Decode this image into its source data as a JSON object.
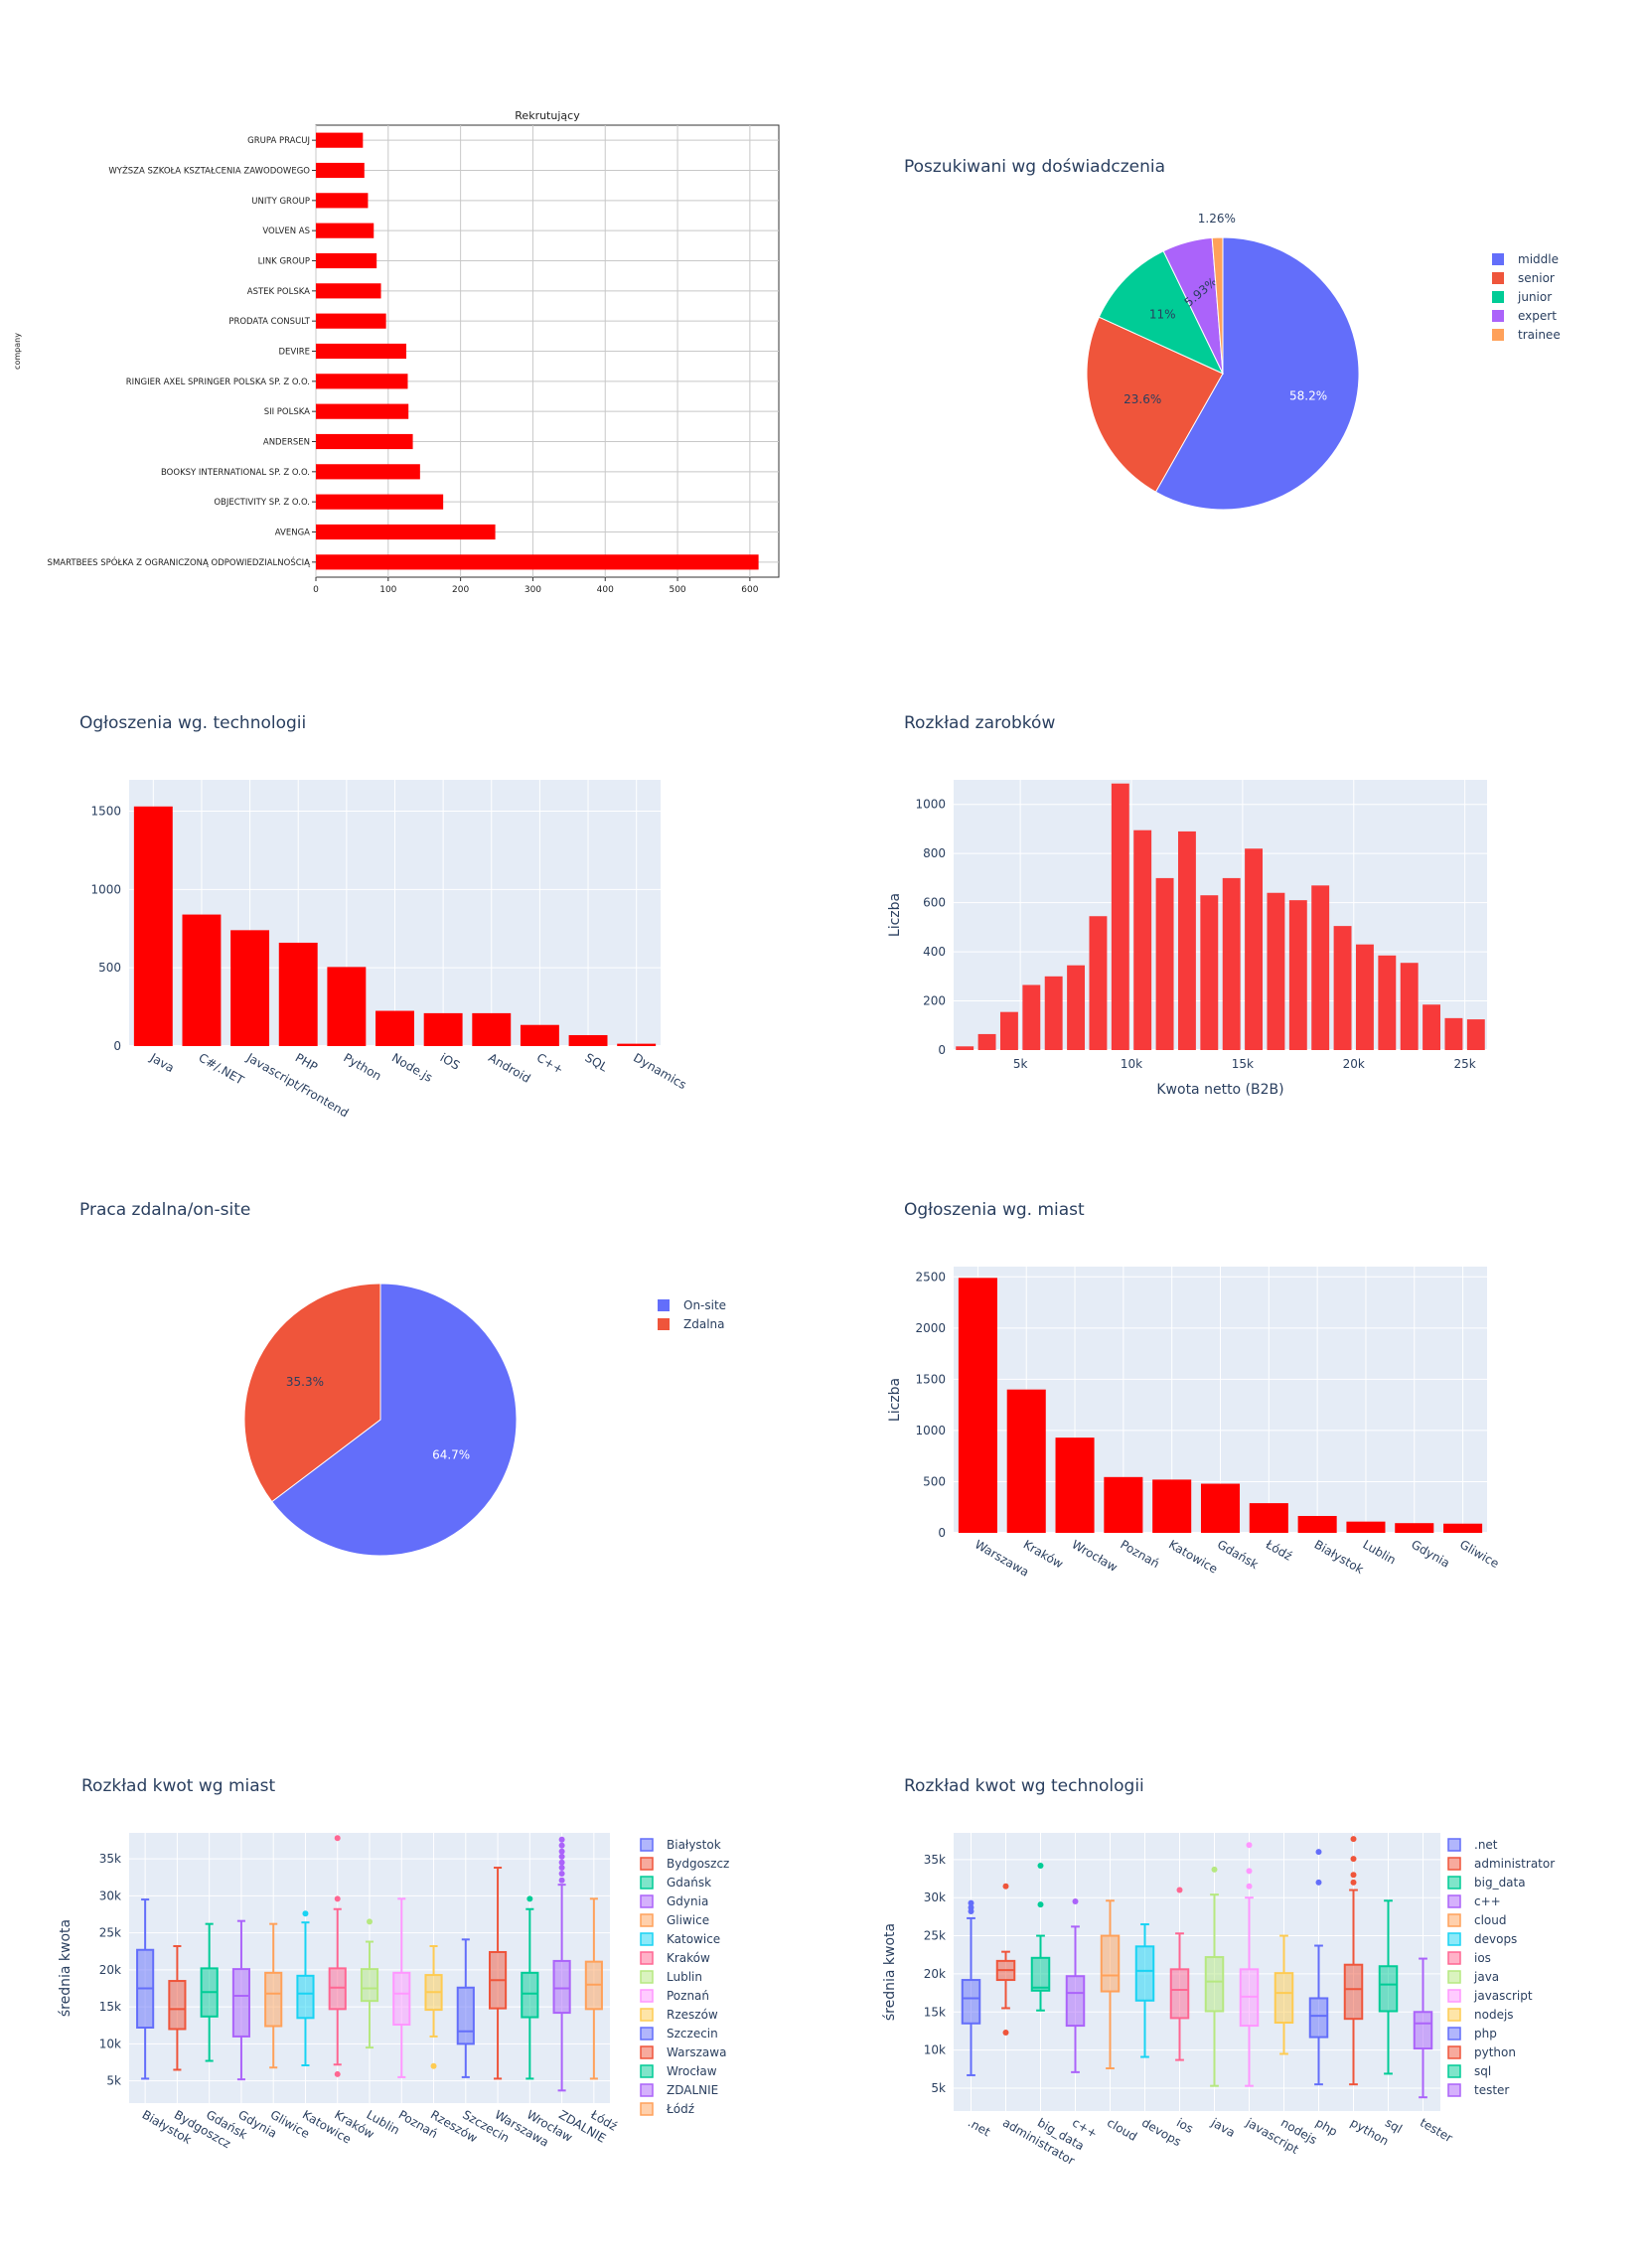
{
  "colors": {
    "plot_bg": "#e5ecf6",
    "red": "#ff0000",
    "salary": "#f73a3a",
    "palette": [
      "#636efa",
      "#ef553b",
      "#00cc96",
      "#ab63fa",
      "#ffa15a",
      "#19d3f3",
      "#ff6692",
      "#b6e880",
      "#ff97ff",
      "#fecb52"
    ]
  },
  "chart_data": [
    {
      "id": "recruiters",
      "type": "bar",
      "orientation": "horizontal",
      "title": "Rekrutujący",
      "ylabel": "company",
      "xlim": [
        0,
        640
      ],
      "xticks": [
        0,
        100,
        200,
        300,
        400,
        500,
        600
      ],
      "categories": [
        "GRUPA PRACUJ",
        "WYŻSZA SZKOŁA KSZTAŁCENIA ZAWODOWEGO",
        "UNITY GROUP",
        "VOLVEN AS",
        "LINK GROUP",
        "ASTEK POLSKA",
        "PRODATA CONSULT",
        "DEVIRE",
        "RINGIER AXEL SPRINGER POLSKA SP. Z O.O.",
        "SII POLSKA",
        "ANDERSEN",
        "BOOKSY INTERNATIONAL SP. Z O.O.",
        "OBJECTIVITY SP. Z O.O.",
        "AVENGA",
        "SMARTBEES SPÓŁKA Z OGRANICZONĄ ODPOWIEDZIALNOŚCIĄ"
      ],
      "values": [
        65,
        67,
        72,
        80,
        84,
        90,
        97,
        125,
        127,
        128,
        134,
        144,
        176,
        248,
        612
      ]
    },
    {
      "id": "experience",
      "type": "pie",
      "title": "Poszukiwani wg doświadczenia",
      "labels": [
        "middle",
        "senior",
        "junior",
        "expert",
        "trainee"
      ],
      "values": [
        58.2,
        23.6,
        11,
        5.93,
        1.26
      ],
      "text": [
        "58.2%",
        "23.6%",
        "11%",
        "5.93%",
        "1.26%"
      ],
      "legend": "right"
    },
    {
      "id": "technologies",
      "type": "bar",
      "title": "Ogłoszenia wg. technologii",
      "categories": [
        "Java",
        "C#/.NET",
        "Javascript/Frontend",
        "PHP",
        "Python",
        "Node.js",
        "iOS",
        "Android",
        "C++",
        "SQL",
        "Dynamics"
      ],
      "values": [
        1530,
        840,
        740,
        660,
        505,
        225,
        210,
        210,
        135,
        70,
        15
      ],
      "ylim": [
        0,
        1700
      ],
      "yticks": [
        0,
        500,
        1000,
        1500
      ]
    },
    {
      "id": "salary",
      "type": "bar",
      "title": "Rozkład zarobków",
      "xlabel": "Kwota netto (B2B)",
      "ylabel": "Liczba",
      "xlim": [
        2000,
        26000
      ],
      "ylim": [
        0,
        1100
      ],
      "xticks": [
        5000,
        10000,
        15000,
        20000,
        25000
      ],
      "xtick_labels": [
        "5k",
        "10k",
        "15k",
        "20k",
        "25k"
      ],
      "yticks": [
        0,
        200,
        400,
        600,
        800,
        1000
      ],
      "bin_width": 1000,
      "bin_starts": [
        2000,
        3000,
        4000,
        5000,
        6000,
        7000,
        8000,
        9000,
        10000,
        11000,
        12000,
        13000,
        14000,
        15000,
        16000,
        17000,
        18000,
        19000,
        20000,
        21000,
        22000,
        23000,
        24000,
        25000
      ],
      "values": [
        15,
        65,
        155,
        265,
        300,
        345,
        545,
        1085,
        895,
        700,
        890,
        630,
        700,
        820,
        640,
        610,
        670,
        505,
        430,
        385,
        355,
        185,
        130,
        125
      ]
    },
    {
      "id": "remote",
      "type": "pie",
      "title": "Praca zdalna/on-site",
      "labels": [
        "On-site",
        "Zdalna"
      ],
      "values": [
        64.7,
        35.3
      ],
      "text": [
        "64.7%",
        "35.3%"
      ],
      "legend": "right"
    },
    {
      "id": "cities",
      "type": "bar",
      "title": "Ogłoszenia wg. miast",
      "ylabel": "Liczba",
      "categories": [
        "Warszawa",
        "Kraków",
        "Wrocław",
        "Poznań",
        "Katowice",
        "Gdańsk",
        "Łódź",
        "Białystok",
        "Lublin",
        "Gdynia",
        "Gliwice"
      ],
      "values": [
        2490,
        1400,
        930,
        545,
        520,
        480,
        290,
        165,
        110,
        95,
        90
      ],
      "ylim": [
        0,
        2600
      ],
      "yticks": [
        0,
        500,
        1000,
        1500,
        2000,
        2500
      ]
    },
    {
      "id": "box_cities",
      "type": "box",
      "title": "Rozkład kwot wg miast",
      "ylabel": "średnia kwota",
      "ylim": [
        2000,
        38500
      ],
      "yticks": [
        5000,
        10000,
        15000,
        20000,
        25000,
        30000,
        35000
      ],
      "ytick_labels": [
        "5k",
        "10k",
        "15k",
        "20k",
        "25k",
        "30k",
        "35k"
      ],
      "legend": "right",
      "series": [
        {
          "name": "Białystok",
          "min": 5300,
          "q1": 12200,
          "median": 17500,
          "q3": 22700,
          "max": 29500,
          "outliers": []
        },
        {
          "name": "Bydgoszcz",
          "min": 6500,
          "q1": 12000,
          "median": 14700,
          "q3": 18500,
          "max": 23200,
          "outliers": []
        },
        {
          "name": "Gdańsk",
          "min": 7700,
          "q1": 13700,
          "median": 17000,
          "q3": 20200,
          "max": 26200,
          "outliers": []
        },
        {
          "name": "Gdynia",
          "min": 5200,
          "q1": 11000,
          "median": 16500,
          "q3": 20100,
          "max": 26600,
          "outliers": []
        },
        {
          "name": "Gliwice",
          "min": 6800,
          "q1": 12400,
          "median": 16800,
          "q3": 19600,
          "max": 26200,
          "outliers": []
        },
        {
          "name": "Katowice",
          "min": 7100,
          "q1": 13500,
          "median": 16800,
          "q3": 19200,
          "max": 26400,
          "outliers": [
            27600
          ]
        },
        {
          "name": "Kraków",
          "min": 7200,
          "q1": 14700,
          "median": 17600,
          "q3": 20200,
          "max": 28200,
          "outliers": [
            29600,
            37800,
            5900
          ]
        },
        {
          "name": "Lublin",
          "min": 9500,
          "q1": 15800,
          "median": 17500,
          "q3": 20100,
          "max": 23800,
          "outliers": [
            26500
          ]
        },
        {
          "name": "Poznań",
          "min": 5500,
          "q1": 12600,
          "median": 16800,
          "q3": 19600,
          "max": 29600,
          "outliers": []
        },
        {
          "name": "Rzeszów",
          "min": 11000,
          "q1": 14600,
          "median": 17000,
          "q3": 19300,
          "max": 23200,
          "outliers": [
            7000
          ]
        },
        {
          "name": "Szczecin",
          "min": 5500,
          "q1": 10000,
          "median": 11700,
          "q3": 17600,
          "max": 24100,
          "outliers": []
        },
        {
          "name": "Warszawa",
          "min": 5300,
          "q1": 14800,
          "median": 18600,
          "q3": 22400,
          "max": 33800,
          "outliers": []
        },
        {
          "name": "Wrocław",
          "min": 5300,
          "q1": 13600,
          "median": 16800,
          "q3": 19600,
          "max": 28200,
          "outliers": [
            29600
          ]
        },
        {
          "name": "ZDALNIE",
          "min": 3700,
          "q1": 14200,
          "median": 17500,
          "q3": 21200,
          "max": 31500,
          "outliers": [
            32100,
            33000,
            33800,
            34500,
            35300,
            36000,
            36800,
            37600
          ]
        },
        {
          "name": "Łódź",
          "min": 5300,
          "q1": 14700,
          "median": 18000,
          "q3": 21100,
          "max": 29600,
          "outliers": []
        }
      ]
    },
    {
      "id": "box_tech",
      "type": "box",
      "title": "Rozkład kwot wg technologii",
      "ylabel": "średnia kwota",
      "ylim": [
        2000,
        38500
      ],
      "yticks": [
        5000,
        10000,
        15000,
        20000,
        25000,
        30000,
        35000
      ],
      "ytick_labels": [
        "5k",
        "10k",
        "15k",
        "20k",
        "25k",
        "30k",
        "35k"
      ],
      "legend": "right",
      "series": [
        {
          "name": ".net",
          "min": 6700,
          "q1": 13500,
          "median": 16800,
          "q3": 19200,
          "max": 27300,
          "outliers": [
            28200,
            28700,
            29300
          ]
        },
        {
          "name": "administrator",
          "min": 15500,
          "q1": 19200,
          "median": 20500,
          "q3": 21700,
          "max": 22900,
          "outliers": [
            31500,
            12300
          ]
        },
        {
          "name": "big_data",
          "min": 15200,
          "q1": 17800,
          "median": 18200,
          "q3": 22100,
          "max": 25000,
          "outliers": [
            29100,
            34200
          ]
        },
        {
          "name": "c++",
          "min": 7100,
          "q1": 13200,
          "median": 17500,
          "q3": 19700,
          "max": 26200,
          "outliers": [
            29500
          ]
        },
        {
          "name": "cloud",
          "min": 7600,
          "q1": 17700,
          "median": 19800,
          "q3": 25000,
          "max": 29600,
          "outliers": []
        },
        {
          "name": "devops",
          "min": 9100,
          "q1": 16500,
          "median": 20400,
          "q3": 23600,
          "max": 26500,
          "outliers": []
        },
        {
          "name": "ios",
          "min": 8700,
          "q1": 14200,
          "median": 17900,
          "q3": 20600,
          "max": 25300,
          "outliers": [
            31000
          ]
        },
        {
          "name": "java",
          "min": 5300,
          "q1": 15100,
          "median": 19000,
          "q3": 22200,
          "max": 30400,
          "outliers": [
            33700
          ]
        },
        {
          "name": "javascript",
          "min": 5300,
          "q1": 13200,
          "median": 17000,
          "q3": 20600,
          "max": 30000,
          "outliers": [
            31500,
            33500,
            36900
          ]
        },
        {
          "name": "nodejs",
          "min": 9500,
          "q1": 13600,
          "median": 17500,
          "q3": 20100,
          "max": 25000,
          "outliers": []
        },
        {
          "name": "php",
          "min": 5500,
          "q1": 11700,
          "median": 14500,
          "q3": 16800,
          "max": 23700,
          "outliers": [
            32000,
            36000
          ]
        },
        {
          "name": "python",
          "min": 5500,
          "q1": 14100,
          "median": 18000,
          "q3": 21200,
          "max": 31000,
          "outliers": [
            32000,
            33000,
            35100,
            37700
          ]
        },
        {
          "name": "sql",
          "min": 6900,
          "q1": 15100,
          "median": 18600,
          "q3": 21000,
          "max": 29600,
          "outliers": []
        },
        {
          "name": "tester",
          "min": 3800,
          "q1": 10200,
          "median": 13500,
          "q3": 15000,
          "max": 22000,
          "outliers": []
        }
      ]
    }
  ]
}
